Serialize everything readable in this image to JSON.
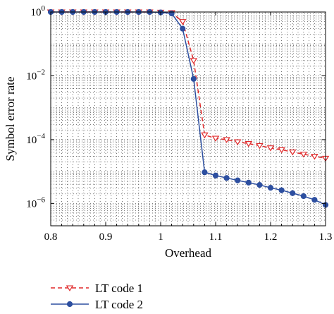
{
  "chart_data": {
    "type": "line",
    "title": "",
    "xlabel": "Overhead",
    "ylabel": "Symbol error rate",
    "xlim": [
      0.8,
      1.3
    ],
    "ylim_log10": [
      -6.7,
      0
    ],
    "y_scale": "log",
    "grid": "dotted",
    "legend_position": "bottom-left, below plot",
    "x_ticks": [
      "0.8",
      "0.9",
      "1",
      "1.1",
      "1.2",
      "1.3"
    ],
    "x_tick_values": [
      0.8,
      0.9,
      1.0,
      1.1,
      1.2,
      1.3
    ],
    "y_ticks": [
      {
        "value": 1,
        "base": "10",
        "exp": "0"
      },
      {
        "value": 0.01,
        "base": "10",
        "exp": "−2"
      },
      {
        "value": 0.0001,
        "base": "10",
        "exp": "−4"
      },
      {
        "value": 1e-06,
        "base": "10",
        "exp": "−6"
      }
    ],
    "series": [
      {
        "name": "LT code 1",
        "color": "#e0292a",
        "line_style": "dashed",
        "marker": "triangle-down-open",
        "points": [
          [
            0.8,
            1
          ],
          [
            0.82,
            1
          ],
          [
            0.84,
            1
          ],
          [
            0.86,
            1
          ],
          [
            0.88,
            1
          ],
          [
            0.9,
            1
          ],
          [
            0.92,
            1
          ],
          [
            0.94,
            1
          ],
          [
            0.96,
            1
          ],
          [
            0.98,
            1
          ],
          [
            1.0,
            0.98
          ],
          [
            1.02,
            0.95
          ],
          [
            1.04,
            0.5
          ],
          [
            1.06,
            0.03
          ],
          [
            1.08,
            0.00014
          ],
          [
            1.1,
            0.00011
          ],
          [
            1.12,
            0.0001
          ],
          [
            1.14,
            8.5e-05
          ],
          [
            1.16,
            7.5e-05
          ],
          [
            1.18,
            6.5e-05
          ],
          [
            1.2,
            5.5e-05
          ],
          [
            1.22,
            4.8e-05
          ],
          [
            1.24,
            4.1e-05
          ],
          [
            1.26,
            3.5e-05
          ],
          [
            1.28,
            3e-05
          ],
          [
            1.3,
            2.6e-05
          ]
        ]
      },
      {
        "name": "LT code 2",
        "color": "#2d4fa0",
        "line_style": "solid",
        "marker": "circle-filled",
        "points": [
          [
            0.8,
            1
          ],
          [
            0.82,
            1
          ],
          [
            0.84,
            1
          ],
          [
            0.86,
            1
          ],
          [
            0.88,
            1
          ],
          [
            0.9,
            1
          ],
          [
            0.92,
            1
          ],
          [
            0.94,
            1
          ],
          [
            0.96,
            1
          ],
          [
            0.98,
            1
          ],
          [
            1.0,
            0.97
          ],
          [
            1.02,
            0.9
          ],
          [
            1.04,
            0.3
          ],
          [
            1.06,
            0.008
          ],
          [
            1.08,
            9.5e-06
          ],
          [
            1.1,
            7.5e-06
          ],
          [
            1.12,
            6.3e-06
          ],
          [
            1.14,
            5.3e-06
          ],
          [
            1.16,
            4.5e-06
          ],
          [
            1.18,
            3.8e-06
          ],
          [
            1.2,
            3.1e-06
          ],
          [
            1.22,
            2.6e-06
          ],
          [
            1.24,
            2.1e-06
          ],
          [
            1.26,
            1.7e-06
          ],
          [
            1.28,
            1.3e-06
          ],
          [
            1.3,
            9e-07
          ]
        ]
      }
    ]
  }
}
